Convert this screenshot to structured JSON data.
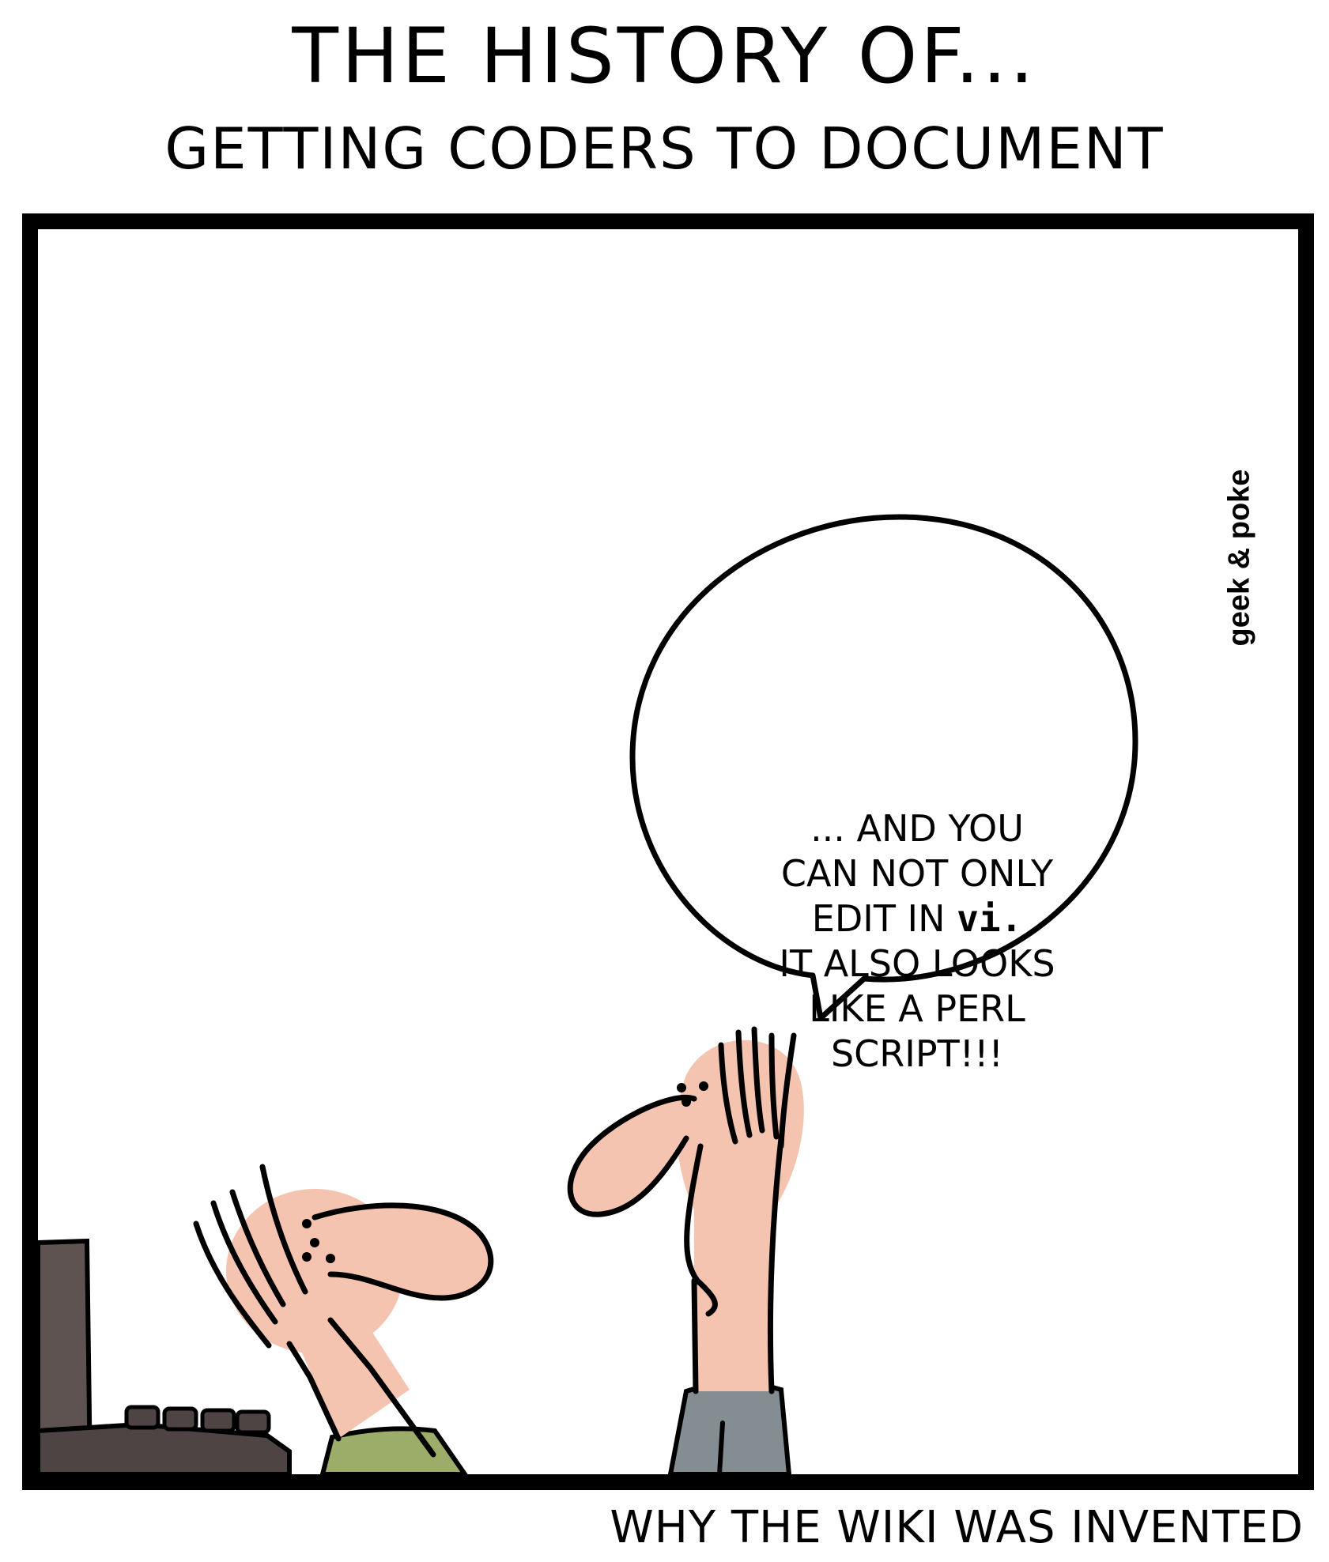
{
  "comic": {
    "title": "THE HISTORY OF...",
    "subtitle": "GETTING CODERS TO DOCUMENT",
    "signature": "geek & poke",
    "speech": {
      "line1": "... AND YOU",
      "line2": "CAN NOT ONLY",
      "line3_prefix": "EDIT IN ",
      "line3_code": "vi",
      "line3_suffix": ".",
      "line4": "IT ALSO LOOKS",
      "line5": "LIKE A PERL",
      "line6": "SCRIPT!!!"
    },
    "caption": "WHY THE WIKI WAS INVENTED"
  },
  "colors": {
    "skin": "#f4c4b0",
    "monitor": "#5e5350",
    "keyboard": "#4f4444",
    "green_shirt": "#9cad6a",
    "gray_shirt": "#838d92",
    "ink": "#000000"
  }
}
